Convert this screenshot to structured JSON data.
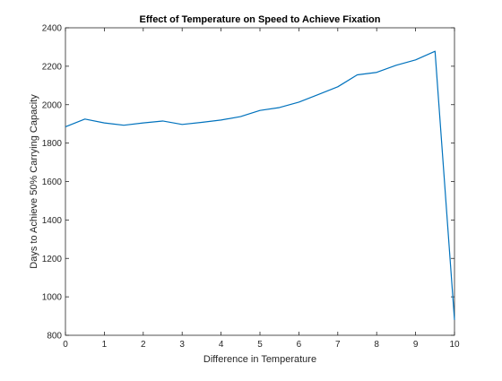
{
  "chart_data": {
    "type": "line",
    "title": "Effect of Temperature on Speed to Achieve Fixation",
    "xlabel": "Difference in Temperature",
    "ylabel": "Days to Achieve 50% Carrying Capacity",
    "xlim": [
      0,
      10
    ],
    "ylim": [
      800,
      2400
    ],
    "xticks": [
      0,
      1,
      2,
      3,
      4,
      5,
      6,
      7,
      8,
      9,
      10
    ],
    "yticks": [
      800,
      1000,
      1200,
      1400,
      1600,
      1800,
      2000,
      2200,
      2400
    ],
    "grid": false,
    "box": true,
    "line_color": "#0072BD",
    "series": [
      {
        "x": [
          0,
          0.5,
          1,
          1.5,
          2,
          2.5,
          3,
          3.5,
          4,
          4.5,
          5,
          5.5,
          6,
          6.5,
          7,
          7.5,
          8,
          8.5,
          9,
          9.5,
          10
        ],
        "y": [
          1885,
          1925,
          1905,
          1893,
          1905,
          1915,
          1897,
          1908,
          1920,
          1938,
          1970,
          1985,
          2013,
          2053,
          2093,
          2155,
          2168,
          2205,
          2233,
          2278,
          880
        ]
      }
    ]
  }
}
